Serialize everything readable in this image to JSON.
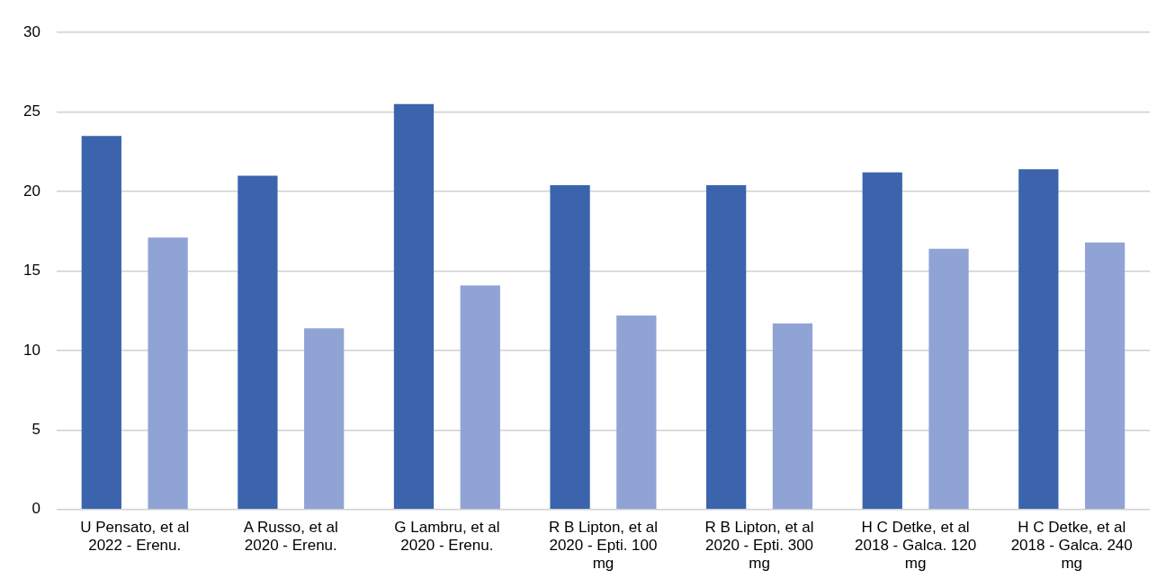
{
  "chart_data": {
    "type": "bar",
    "categories": [
      "U Pensato, et al 2022 - Erenu.",
      "A Russo, et al 2020 - Erenu.",
      "G Lambru, et al 2020 - Erenu.",
      "R B Lipton, et al 2020 - Epti. 100 mg",
      "R B Lipton, et al 2020 - Epti. 300 mg",
      "H C Detke, et al 2018 - Galca. 120 mg",
      "H C Detke, et al 2018 - Galca. 240 mg"
    ],
    "series": [
      {
        "color": "#3b64ad",
        "values": [
          23.5,
          21.0,
          25.5,
          20.4,
          20.4,
          21.2,
          21.4
        ]
      },
      {
        "color": "#8fa3d5",
        "values": [
          17.1,
          11.4,
          14.1,
          12.2,
          11.7,
          16.4,
          16.8
        ]
      }
    ],
    "ylim": [
      0,
      30
    ],
    "yticks": [
      0,
      5,
      10,
      15,
      20,
      25,
      30
    ],
    "grid": "y",
    "legend": false
  }
}
